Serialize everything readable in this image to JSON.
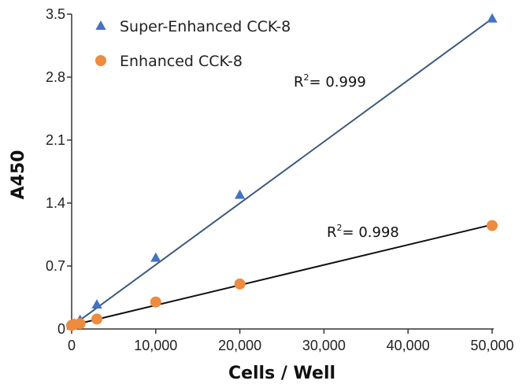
{
  "chart_data": {
    "type": "scatter",
    "xlabel": "Cells / Well",
    "ylabel": "A450",
    "xlim": [
      0,
      50000
    ],
    "ylim": [
      0,
      3.5
    ],
    "x_ticks": [
      0,
      10000,
      20000,
      30000,
      40000,
      50000
    ],
    "x_tick_labels": [
      "0",
      "10,000",
      "20,000",
      "30,000",
      "40,000",
      "50,000"
    ],
    "y_ticks": [
      0,
      0.7,
      1.4,
      2.1,
      2.8,
      3.5
    ],
    "y_tick_labels": [
      "0",
      "0.7",
      "1.4",
      "2.1",
      "2.8",
      "3.5"
    ],
    "grid": false,
    "legend_position": "top-left",
    "series": [
      {
        "name": "Super-Enhanced CCK-8",
        "marker": "triangle",
        "color": "#4472c4",
        "line_color": "#3d5a80",
        "x": [
          0,
          300,
          1000,
          3000,
          10000,
          20000,
          50000
        ],
        "y": [
          0.04,
          0.06,
          0.1,
          0.27,
          0.79,
          1.49,
          3.45
        ],
        "fit": {
          "x0": 0,
          "y0": 0.03,
          "x1": 50000,
          "y1": 3.45
        },
        "r2_prefix": "R",
        "r2_sup": "2",
        "r2_value": "= 0.999"
      },
      {
        "name": "Enhanced CCK-8",
        "marker": "circle",
        "color": "#ed8b3f",
        "line_color": "#111111",
        "x": [
          0,
          300,
          1000,
          3000,
          10000,
          20000,
          50000
        ],
        "y": [
          0.04,
          0.05,
          0.06,
          0.11,
          0.3,
          0.5,
          1.15
        ],
        "fit": {
          "x0": 0,
          "y0": 0.04,
          "x1": 50000,
          "y1": 1.16
        },
        "r2_prefix": "R",
        "r2_sup": "2",
        "r2_value": "= 0.998"
      }
    ]
  }
}
